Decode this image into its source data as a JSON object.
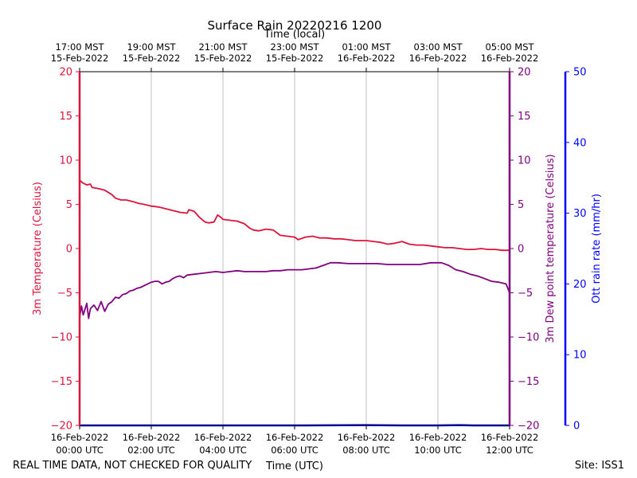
{
  "chart_data": {
    "type": "line",
    "title": "Surface Rain 20220216 1200",
    "xlabel_bottom": "Time (UTC)",
    "xlabel_top": "Time (local)",
    "x_unit": "hours since 16-Feb-2022 00:00 UTC",
    "xlim": [
      0,
      12
    ],
    "x_ticks_bottom": [
      {
        "x": 0,
        "line1": "16-Feb-2022",
        "line2": "00:00 UTC"
      },
      {
        "x": 2,
        "line1": "16-Feb-2022",
        "line2": "02:00 UTC"
      },
      {
        "x": 4,
        "line1": "16-Feb-2022",
        "line2": "04:00 UTC"
      },
      {
        "x": 6,
        "line1": "16-Feb-2022",
        "line2": "06:00 UTC"
      },
      {
        "x": 8,
        "line1": "16-Feb-2022",
        "line2": "08:00 UTC"
      },
      {
        "x": 10,
        "line1": "16-Feb-2022",
        "line2": "10:00 UTC"
      },
      {
        "x": 12,
        "line1": "16-Feb-2022",
        "line2": "12:00 UTC"
      }
    ],
    "x_ticks_top": [
      {
        "x": 0,
        "line1": "17:00 MST",
        "line2": "15-Feb-2022"
      },
      {
        "x": 2,
        "line1": "19:00 MST",
        "line2": "15-Feb-2022"
      },
      {
        "x": 4,
        "line1": "21:00 MST",
        "line2": "15-Feb-2022"
      },
      {
        "x": 6,
        "line1": "23:00 MST",
        "line2": "15-Feb-2022"
      },
      {
        "x": 8,
        "line1": "01:00 MST",
        "line2": "16-Feb-2022"
      },
      {
        "x": 10,
        "line1": "03:00 MST",
        "line2": "16-Feb-2022"
      },
      {
        "x": 12,
        "line1": "05:00 MST",
        "line2": "16-Feb-2022"
      }
    ],
    "axes": {
      "temp": {
        "label": "3m Temperature (Celsius)",
        "ylim": [
          -20,
          20
        ],
        "ticks": [
          20,
          15,
          10,
          5,
          0,
          -5,
          -10,
          -15,
          -20
        ],
        "tick_labels": [
          "20",
          "15",
          "10",
          "5",
          "0",
          "−5",
          "−10",
          "−15",
          "−20"
        ],
        "color": "#dc143c"
      },
      "dew": {
        "label": "3m Dew point temperature (Celsius)",
        "ylim": [
          -20,
          20
        ],
        "ticks": [
          20,
          15,
          10,
          5,
          0,
          -5,
          -10,
          -15,
          -20
        ],
        "tick_labels": [
          "20",
          "15",
          "10",
          "5",
          "0",
          "−5",
          "−10",
          "−15",
          "−20"
        ],
        "color": "#800080"
      },
      "rain": {
        "label": "Ott rain rate (mm/hr)",
        "ylim": [
          0,
          50
        ],
        "ticks": [
          50,
          40,
          30,
          20,
          10,
          0
        ],
        "tick_labels": [
          "50",
          "40",
          "30",
          "20",
          "10",
          "0"
        ],
        "color": "#0000ff"
      }
    },
    "series": [
      {
        "name": "3m Temperature",
        "axis": "temp",
        "color": "#dc143c",
        "x": [
          0,
          0.1,
          0.2,
          0.3,
          0.35,
          0.5,
          0.7,
          0.9,
          1.0,
          1.15,
          1.3,
          1.5,
          1.65,
          1.8,
          2.0,
          2.2,
          2.4,
          2.6,
          2.8,
          3.0,
          3.05,
          3.2,
          3.35,
          3.5,
          3.6,
          3.75,
          3.85,
          3.95,
          4.0,
          4.2,
          4.4,
          4.6,
          4.75,
          4.85,
          5.0,
          5.2,
          5.4,
          5.6,
          5.8,
          6.0,
          6.1,
          6.3,
          6.5,
          6.7,
          6.9,
          7.1,
          7.3,
          7.5,
          7.7,
          7.9,
          8.0,
          8.2,
          8.4,
          8.6,
          8.8,
          9.0,
          9.2,
          9.4,
          9.6,
          9.8,
          10.0,
          10.2,
          10.4,
          10.6,
          10.8,
          11.0,
          11.2,
          11.4,
          11.6,
          11.8,
          12.0
        ],
        "y": [
          7.7,
          7.4,
          7.2,
          7.3,
          6.9,
          6.8,
          6.6,
          6.1,
          5.7,
          5.5,
          5.5,
          5.3,
          5.1,
          5.0,
          4.8,
          4.7,
          4.5,
          4.3,
          4.1,
          4.0,
          4.4,
          4.2,
          3.5,
          3.0,
          2.9,
          3.0,
          3.8,
          3.5,
          3.3,
          3.2,
          3.1,
          2.8,
          2.3,
          2.1,
          2.0,
          2.2,
          2.1,
          1.5,
          1.4,
          1.3,
          1.0,
          1.3,
          1.4,
          1.2,
          1.2,
          1.1,
          1.1,
          1.0,
          0.9,
          0.9,
          0.9,
          0.8,
          0.7,
          0.5,
          0.6,
          0.8,
          0.5,
          0.4,
          0.4,
          0.3,
          0.2,
          0.1,
          0.1,
          0.0,
          -0.1,
          -0.1,
          0.0,
          -0.1,
          -0.1,
          -0.2,
          -0.2
        ]
      },
      {
        "name": "3m Dew point temperature",
        "axis": "dew",
        "color": "#800080",
        "x": [
          0,
          0.05,
          0.1,
          0.2,
          0.25,
          0.3,
          0.4,
          0.5,
          0.6,
          0.7,
          0.8,
          0.9,
          1.0,
          1.1,
          1.2,
          1.3,
          1.4,
          1.5,
          1.6,
          1.7,
          1.8,
          1.9,
          2.0,
          2.1,
          2.2,
          2.3,
          2.4,
          2.5,
          2.6,
          2.7,
          2.8,
          2.9,
          3.0,
          3.2,
          3.4,
          3.6,
          3.8,
          4.0,
          4.2,
          4.4,
          4.6,
          4.8,
          5.0,
          5.2,
          5.4,
          5.6,
          5.8,
          6.0,
          6.2,
          6.4,
          6.6,
          6.8,
          7.0,
          7.2,
          7.5,
          7.8,
          8.0,
          8.3,
          8.6,
          8.9,
          9.2,
          9.5,
          9.8,
          10.0,
          10.1,
          10.3,
          10.5,
          10.7,
          10.9,
          11.1,
          11.3,
          11.5,
          11.7,
          11.9,
          12.0
        ],
        "y": [
          -7.8,
          -6.5,
          -7.5,
          -6.2,
          -7.9,
          -6.8,
          -6.4,
          -7.0,
          -6.0,
          -7.1,
          -6.3,
          -6.0,
          -5.5,
          -5.6,
          -5.2,
          -5.1,
          -4.8,
          -4.7,
          -4.5,
          -4.4,
          -4.2,
          -4.0,
          -3.8,
          -3.7,
          -3.7,
          -4.0,
          -3.8,
          -3.7,
          -3.4,
          -3.2,
          -3.1,
          -3.3,
          -3.0,
          -2.9,
          -2.8,
          -2.7,
          -2.6,
          -2.7,
          -2.6,
          -2.5,
          -2.6,
          -2.6,
          -2.6,
          -2.6,
          -2.5,
          -2.5,
          -2.4,
          -2.4,
          -2.4,
          -2.3,
          -2.2,
          -1.9,
          -1.6,
          -1.6,
          -1.7,
          -1.7,
          -1.7,
          -1.7,
          -1.8,
          -1.8,
          -1.8,
          -1.8,
          -1.6,
          -1.6,
          -1.6,
          -1.9,
          -2.4,
          -2.6,
          -2.9,
          -3.1,
          -3.4,
          -3.7,
          -3.8,
          -4.0,
          -5.0
        ]
      },
      {
        "name": "Ott rain rate",
        "axis": "rain",
        "color": "#0000ff",
        "x": [
          0,
          2,
          4,
          6,
          8,
          9,
          10,
          10.6,
          11,
          12
        ],
        "y": [
          0,
          0,
          0,
          0,
          0.05,
          0,
          0,
          0.05,
          0,
          0
        ]
      }
    ],
    "grid": true
  },
  "footer": {
    "left": "REAL TIME DATA, NOT CHECKED FOR QUALITY",
    "right": "Site: ISS1"
  }
}
